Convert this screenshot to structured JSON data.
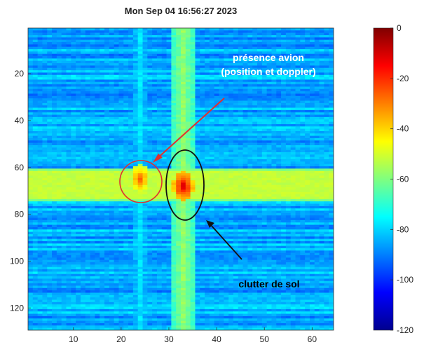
{
  "chart_data": {
    "type": "heatmap",
    "title": "Mon Sep 04 16:56:27 2023",
    "xlabel": "",
    "ylabel": "",
    "xlim": [
      0.5,
      64.5
    ],
    "ylim": [
      0.5,
      129.5
    ],
    "x_ticks": [
      10,
      20,
      30,
      40,
      50,
      60
    ],
    "y_ticks": [
      20,
      40,
      60,
      80,
      100,
      120
    ],
    "y_direction": "down",
    "colorbar": {
      "range": [
        -120,
        0
      ],
      "ticks": [
        0,
        -20,
        -40,
        -60,
        -80,
        -100,
        -120
      ],
      "colormap": "jet"
    },
    "features": {
      "background_level": -85,
      "vertical_bands": [
        {
          "x": 33,
          "half_width": 1.5,
          "level": -58
        },
        {
          "x": 24,
          "half_width": 1.0,
          "level": -78
        }
      ],
      "horizontal_band": {
        "y_from": 61,
        "y_to": 74,
        "level": -52
      },
      "peaks": [
        {
          "x": 33,
          "y": 68,
          "level": -10
        },
        {
          "x": 24,
          "y": 65,
          "level": -25
        }
      ]
    },
    "annotations": [
      {
        "text": "présence avion",
        "color": "#ffffff"
      },
      {
        "text": "(position et doppler)",
        "color": "#ffffff"
      },
      {
        "text": "clutter de sol",
        "color": "#000000"
      }
    ]
  }
}
